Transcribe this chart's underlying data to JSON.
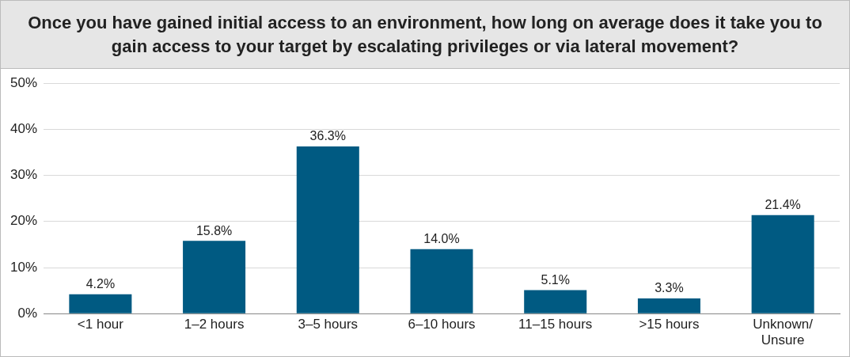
{
  "chart_data": {
    "type": "bar",
    "title": "Once you have gained initial access to an environment, how long on average does it take you to gain access to your target by escalating privileges or via lateral movement?",
    "categories": [
      "<1 hour",
      "1–2 hours",
      "3–5 hours",
      "6–10 hours",
      "11–15 hours",
      ">15 hours",
      "Unknown/ Unsure"
    ],
    "values": [
      4.2,
      15.8,
      36.3,
      14.0,
      5.1,
      3.3,
      21.4
    ],
    "value_labels": [
      "4.2%",
      "15.8%",
      "36.3%",
      "14.0%",
      "5.1%",
      "3.3%",
      "21.4%"
    ],
    "color": "#005a82",
    "ylim": [
      0,
      50
    ],
    "yticks": [
      {
        "value": 0,
        "label": "0%"
      },
      {
        "value": 10,
        "label": "10%"
      },
      {
        "value": 20,
        "label": "20%"
      },
      {
        "value": 30,
        "label": "30%"
      },
      {
        "value": 40,
        "label": "40%"
      },
      {
        "value": 50,
        "label": "50%"
      }
    ],
    "grid": "y",
    "legend": false
  }
}
